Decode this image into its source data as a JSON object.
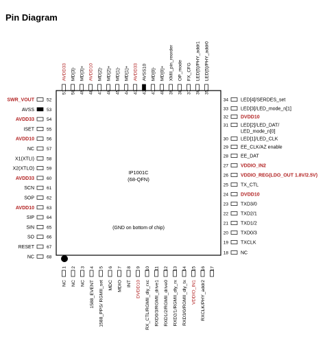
{
  "title": "Pin Diagram",
  "chip": {
    "name": "IP1001C",
    "package": "(68-QFN)",
    "note": "(GND on bottom of chip)"
  },
  "colors": {
    "power": "#b22222",
    "normal": "#000000"
  },
  "pins": {
    "top": [
      {
        "num": "51",
        "label": "AVDD33",
        "power": true
      },
      {
        "num": "50",
        "label": "MD[3]-",
        "power": false
      },
      {
        "num": "49",
        "label": "MD[3]+",
        "power": false
      },
      {
        "num": "48",
        "label": "AVDD10",
        "power": true
      },
      {
        "num": "47",
        "label": "MD[2]-",
        "power": false
      },
      {
        "num": "46",
        "label": "MD[2]+",
        "power": false
      },
      {
        "num": "45",
        "label": "MD[1]-",
        "power": false
      },
      {
        "num": "44",
        "label": "MD[1]+",
        "power": false
      },
      {
        "num": "43",
        "label": "AVDD33",
        "power": true
      },
      {
        "num": "42",
        "label": "AVSS10",
        "power": false,
        "filled": true
      },
      {
        "num": "41",
        "label": "MD[0]-",
        "power": false
      },
      {
        "num": "40",
        "label": "MD[0]+",
        "power": false
      },
      {
        "num": "39",
        "label": "XMII_pin_reorder",
        "power": false
      },
      {
        "num": "38",
        "label": "OP_mode",
        "power": false
      },
      {
        "num": "37",
        "label": "FX_CFG",
        "power": false
      },
      {
        "num": "36",
        "label": "LED[5]/PHY_addr1",
        "power": false
      },
      {
        "num": "35",
        "label": "LED[5]/PHY_addr0",
        "power": false
      }
    ],
    "left": [
      {
        "num": "52",
        "label": "SWR_VOUT",
        "power": true
      },
      {
        "num": "53",
        "label": "AVSS",
        "power": false,
        "filled": true
      },
      {
        "num": "54",
        "label": "AVDD33",
        "power": true
      },
      {
        "num": "55",
        "label": "ISET",
        "power": false
      },
      {
        "num": "56",
        "label": "AVDD10",
        "power": true
      },
      {
        "num": "57",
        "label": "NC",
        "power": false
      },
      {
        "num": "58",
        "label": "X1(XTLI)",
        "power": false
      },
      {
        "num": "59",
        "label": "X2(XTLO)",
        "power": false
      },
      {
        "num": "60",
        "label": "AVDD33",
        "power": true
      },
      {
        "num": "61",
        "label": "SCN",
        "power": false
      },
      {
        "num": "62",
        "label": "SOP",
        "power": false
      },
      {
        "num": "63",
        "label": "AVDD10",
        "power": true
      },
      {
        "num": "64",
        "label": "SIP",
        "power": false
      },
      {
        "num": "65",
        "label": "SIN",
        "power": false
      },
      {
        "num": "66",
        "label": "SO",
        "power": false
      },
      {
        "num": "67",
        "label": "RESET",
        "power": false
      },
      {
        "num": "68",
        "label": "NC",
        "power": false
      }
    ],
    "right": [
      {
        "num": "34",
        "label": "LED[4]/SERDES_set",
        "power": false
      },
      {
        "num": "33",
        "label": "LED[3]/LED_mode_n[1]",
        "power": false
      },
      {
        "num": "32",
        "label": "DVDD10",
        "power": true
      },
      {
        "num": "31",
        "label": "LED[2]/LED_DAT/",
        "power": false
      },
      {
        "num": "",
        "label": "LED_mode_n[0]",
        "power": false
      },
      {
        "num": "30",
        "label": "LED[1]/LED_CLK",
        "power": false
      },
      {
        "num": "29",
        "label": "EE_CLK/AZ enable",
        "power": false
      },
      {
        "num": "28",
        "label": "EE_DAT",
        "power": false
      },
      {
        "num": "27",
        "label": "VDDIO_IN2",
        "power": true
      },
      {
        "num": "26",
        "label": "VDDIO_REG(LDO_OUT 1.8V/2.5V)",
        "power": true
      },
      {
        "num": "25",
        "label": "TX_CTL",
        "power": false
      },
      {
        "num": "24",
        "label": "DVDD10",
        "power": true
      },
      {
        "num": "23",
        "label": "TXD3/0",
        "power": false
      },
      {
        "num": "22",
        "label": "TXD2/1",
        "power": false
      },
      {
        "num": "21",
        "label": "TXD1/2",
        "power": false
      },
      {
        "num": "20",
        "label": "TXD0/3",
        "power": false
      },
      {
        "num": "19",
        "label": "TXCLK",
        "power": false
      },
      {
        "num": "18",
        "label": "NC",
        "power": false
      }
    ],
    "bottom": [
      {
        "num": "1",
        "label": "NC",
        "power": false
      },
      {
        "num": "2",
        "label": "NC",
        "power": false
      },
      {
        "num": "3",
        "label": "NC",
        "power": false
      },
      {
        "num": "4",
        "label": "1588_EVENT",
        "power": false
      },
      {
        "num": "5",
        "label": "1588_PPS/ RGMII_set",
        "power": false
      },
      {
        "num": "6",
        "label": "MDC",
        "power": false
      },
      {
        "num": "7",
        "label": "MDIO",
        "power": false
      },
      {
        "num": "8",
        "label": "INT",
        "power": false
      },
      {
        "num": "9",
        "label": "DVDD10",
        "power": true
      },
      {
        "num": "10",
        "label": "RX_CTL/RGMII_dly_rxc",
        "power": false
      },
      {
        "num": "11",
        "label": "RXD0/3/RGMII_drive1",
        "power": false
      },
      {
        "num": "12",
        "label": "RXD1/2/RGMII_drive0",
        "power": false
      },
      {
        "num": "13",
        "label": "RXD2/1/RGMII_dly_rx",
        "power": false
      },
      {
        "num": "14",
        "label": "RXD3/0/RGMII_dly_tx",
        "power": false
      },
      {
        "num": "15",
        "label": "VDDIO_IN1",
        "power": true
      },
      {
        "num": "16",
        "label": "RXCLK/PHY_addr2",
        "power": false
      },
      {
        "num": "17",
        "label": "",
        "power": false
      }
    ]
  }
}
